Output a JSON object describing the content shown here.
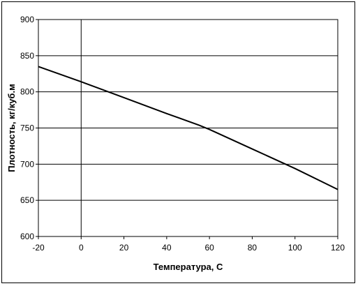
{
  "chart_data": {
    "type": "line",
    "title": "",
    "xlabel": "Температура, С",
    "ylabel": "Плотность, кг/куб.м",
    "xlim": [
      -20,
      120
    ],
    "ylim": [
      600,
      900
    ],
    "xticks": [
      -20,
      0,
      20,
      40,
      60,
      80,
      100,
      120
    ],
    "yticks": [
      600,
      650,
      700,
      750,
      800,
      850,
      900
    ],
    "grid": "horizontal",
    "legend": "none",
    "series": [
      {
        "x": [
          -20,
          0,
          20,
          40,
          55,
          60,
          80,
          100,
          120
        ],
        "y": [
          835,
          814,
          792,
          770,
          754,
          748,
          721,
          694,
          665
        ],
        "color": "#000000"
      }
    ]
  }
}
